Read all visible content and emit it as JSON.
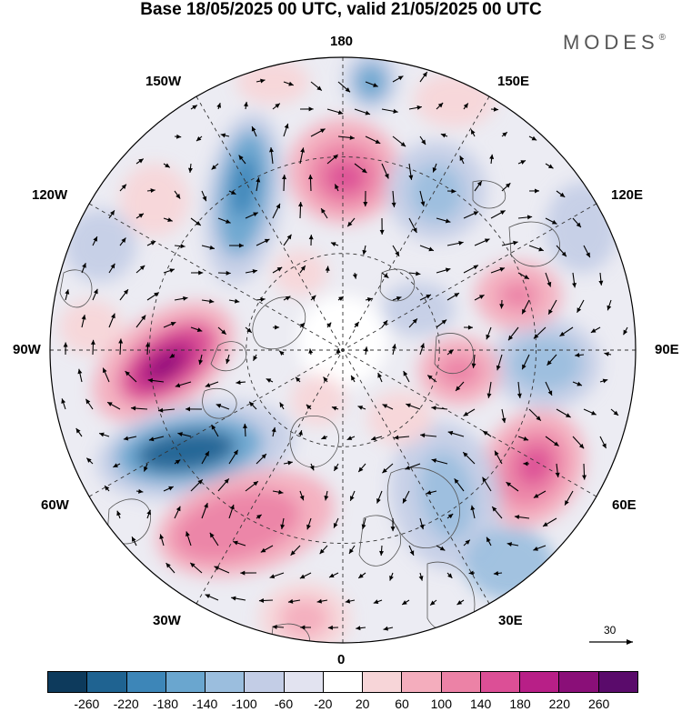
{
  "title": "Base 18/05/2025 00 UTC, valid 21/05/2025 00 UTC",
  "brand": "MODES",
  "brand_mark": "®",
  "longitude_labels": {
    "top": "180",
    "bottom": "0",
    "left": "90W",
    "right": "90E",
    "upper_left": "150W",
    "upper_right": "150E",
    "mid_left_top": "120W",
    "mid_right_top": "120E",
    "mid_left_bottom": "60W",
    "mid_right_bottom": "60E",
    "lower_left": "30W",
    "lower_right": "30E"
  },
  "reference_vector_label": "30",
  "colorbar": {
    "labels": [
      "-260",
      "-220",
      "-180",
      "-140",
      "-100",
      "-60",
      "-20",
      "20",
      "60",
      "100",
      "140",
      "180",
      "220",
      "260"
    ],
    "colors": [
      "#0d3a5c",
      "#1f6391",
      "#3d86b8",
      "#6aa6cf",
      "#9bbede",
      "#c3cde6",
      "#e2e3f0",
      "#ffffff",
      "#f7d5d8",
      "#f4adbd",
      "#ec82a6",
      "#dc4f96",
      "#b81f87",
      "#8a0f78",
      "#5a0b6b"
    ]
  }
}
